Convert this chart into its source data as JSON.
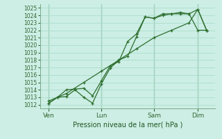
{
  "title": "Pression niveau de la mer( hPa )",
  "bg_color": "#cceee4",
  "grid_color": "#aaddcc",
  "line_color": "#2d6e2d",
  "ylim": [
    1011.5,
    1025.5
  ],
  "yticks": [
    1012,
    1013,
    1014,
    1015,
    1016,
    1017,
    1018,
    1019,
    1020,
    1021,
    1022,
    1023,
    1024,
    1025
  ],
  "xtick_labels": [
    "Ven",
    "Lun",
    "Sam",
    "Dim"
  ],
  "xtick_positions": [
    1,
    4,
    7,
    9.5
  ],
  "xlim": [
    0.5,
    10.5
  ],
  "line1_x": [
    1,
    1.5,
    2,
    2.5,
    3,
    3.5,
    4,
    4.5,
    5,
    5.5,
    6,
    6.5,
    7,
    7.5,
    8,
    8.5,
    9,
    9.5,
    10
  ],
  "line1_y": [
    1012.2,
    1013.0,
    1013.1,
    1014.0,
    1013.0,
    1012.2,
    1014.8,
    1016.9,
    1018.0,
    1018.5,
    1021.1,
    1023.8,
    1023.6,
    1024.0,
    1024.2,
    1024.2,
    1024.2,
    1024.8,
    1022.0
  ],
  "line2_x": [
    1,
    1.5,
    2,
    2.5,
    3,
    3.5,
    4,
    4.5,
    5,
    5.5,
    6,
    6.5,
    7,
    7.5,
    8,
    8.5,
    9,
    9.5,
    10
  ],
  "line2_y": [
    1012.2,
    1013.0,
    1014.0,
    1014.1,
    1014.2,
    1013.2,
    1015.2,
    1017.2,
    1017.8,
    1020.5,
    1021.5,
    1023.8,
    1023.6,
    1024.2,
    1024.2,
    1024.4,
    1024.2,
    1022.0,
    1022.0
  ],
  "line3_x": [
    1,
    2,
    3,
    4,
    5,
    6,
    7,
    8,
    9,
    9.5,
    10
  ],
  "line3_y": [
    1012.5,
    1013.5,
    1015.0,
    1016.5,
    1018.0,
    1019.5,
    1021.0,
    1022.0,
    1023.0,
    1024.8,
    1022.0
  ],
  "vlines": [
    1,
    4,
    7,
    9.5
  ]
}
